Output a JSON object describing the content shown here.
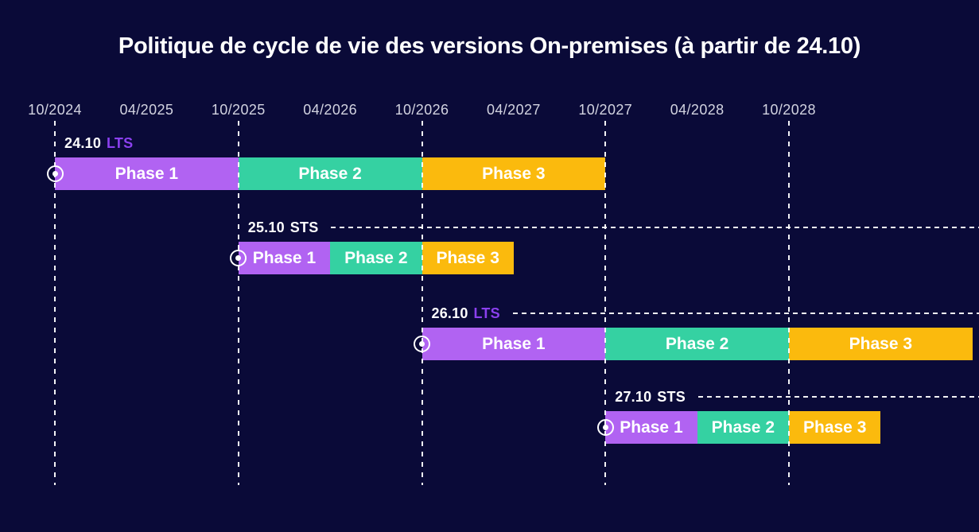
{
  "colors": {
    "background": "#0A0A38",
    "phase_1": "#B163F2",
    "phase_2": "#35D1A2",
    "phase_3": "#FBBA0D",
    "lts_label": "#8B40EF",
    "sts_label": "#FFFFFF",
    "version_label": "#FFFFFF",
    "axis_label": "#D2D3E0",
    "title": "#FFFFFF",
    "gridline": "#FFFFFF",
    "marker": "#FFFFFF"
  },
  "chart_data": {
    "type": "bar",
    "subtype": "gantt-timeline",
    "title": "Politique de cycle de vie des versions On-premises (à partir de 24.10)",
    "x_ticks": [
      "10/2024",
      "04/2025",
      "10/2025",
      "04/2026",
      "10/2026",
      "04/2027",
      "10/2027",
      "04/2028",
      "10/2028"
    ],
    "gridlines": [
      "10/2024",
      "10/2025",
      "10/2026",
      "10/2027",
      "10/2028"
    ],
    "x_axis_range": [
      "10/2024",
      "10/2029"
    ],
    "grid": "vertical-dashed",
    "legend_position": "none",
    "rows": [
      {
        "version": "24.10",
        "channel": "LTS",
        "start": "10/2024",
        "trail_dashed_line": false,
        "phases": [
          {
            "label": "Phase 1",
            "start": "10/2024",
            "end": "10/2025"
          },
          {
            "label": "Phase 2",
            "start": "10/2025",
            "end": "10/2026"
          },
          {
            "label": "Phase 3",
            "start": "10/2026",
            "end": "10/2027"
          }
        ]
      },
      {
        "version": "25.10",
        "channel": "STS",
        "start": "10/2025",
        "trail_dashed_line": true,
        "phases": [
          {
            "label": "Phase 1",
            "start": "10/2025",
            "end": "04/2026"
          },
          {
            "label": "Phase 2",
            "start": "04/2026",
            "end": "10/2026"
          },
          {
            "label": "Phase 3",
            "start": "10/2026",
            "end": "04/2027"
          }
        ]
      },
      {
        "version": "26.10",
        "channel": "LTS",
        "start": "10/2026",
        "trail_dashed_line": true,
        "phases": [
          {
            "label": "Phase 1",
            "start": "10/2026",
            "end": "10/2027"
          },
          {
            "label": "Phase 2",
            "start": "10/2027",
            "end": "10/2028"
          },
          {
            "label": "Phase 3",
            "start": "10/2028",
            "end": "10/2029"
          }
        ]
      },
      {
        "version": "27.10",
        "channel": "STS",
        "start": "10/2027",
        "trail_dashed_line": true,
        "phases": [
          {
            "label": "Phase 1",
            "start": "10/2027",
            "end": "04/2028"
          },
          {
            "label": "Phase 2",
            "start": "04/2028",
            "end": "10/2028"
          },
          {
            "label": "Phase 3",
            "start": "10/2028",
            "end": "04/2029"
          }
        ]
      }
    ]
  }
}
